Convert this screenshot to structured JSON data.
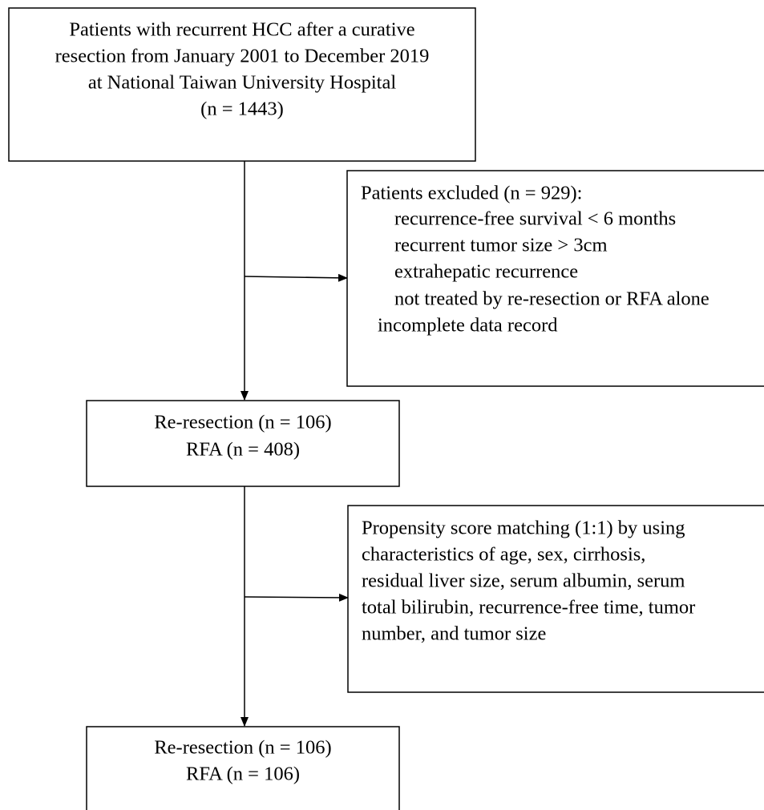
{
  "nodes": [
    {
      "lines": [
        "Patients with recurrent HCC after a curative",
        "resection from January 2001 to December 2019",
        "at National Taiwan University Hospital",
        "(n = 1443)"
      ]
    },
    {
      "lines": [
        "Patients excluded (n = 929):",
        "recurrence-free survival < 6 months",
        "recurrent tumor size > 3cm",
        "extrahepatic recurrence",
        "not treated by re-resection or RFA alone",
        "incomplete data record"
      ]
    },
    {
      "lines": [
        "Re-resection (n = 106)",
        "RFA (n = 408)"
      ]
    },
    {
      "lines": [
        "Propensity score matching (1:1) by using",
        "characteristics of age, sex, cirrhosis,",
        "residual liver size, serum albumin, serum",
        "total bilirubin, recurrence-free time, tumor",
        "number, and tumor size"
      ]
    },
    {
      "lines": [
        "Re-resection (n = 106)",
        "RFA (n = 106)"
      ]
    }
  ]
}
